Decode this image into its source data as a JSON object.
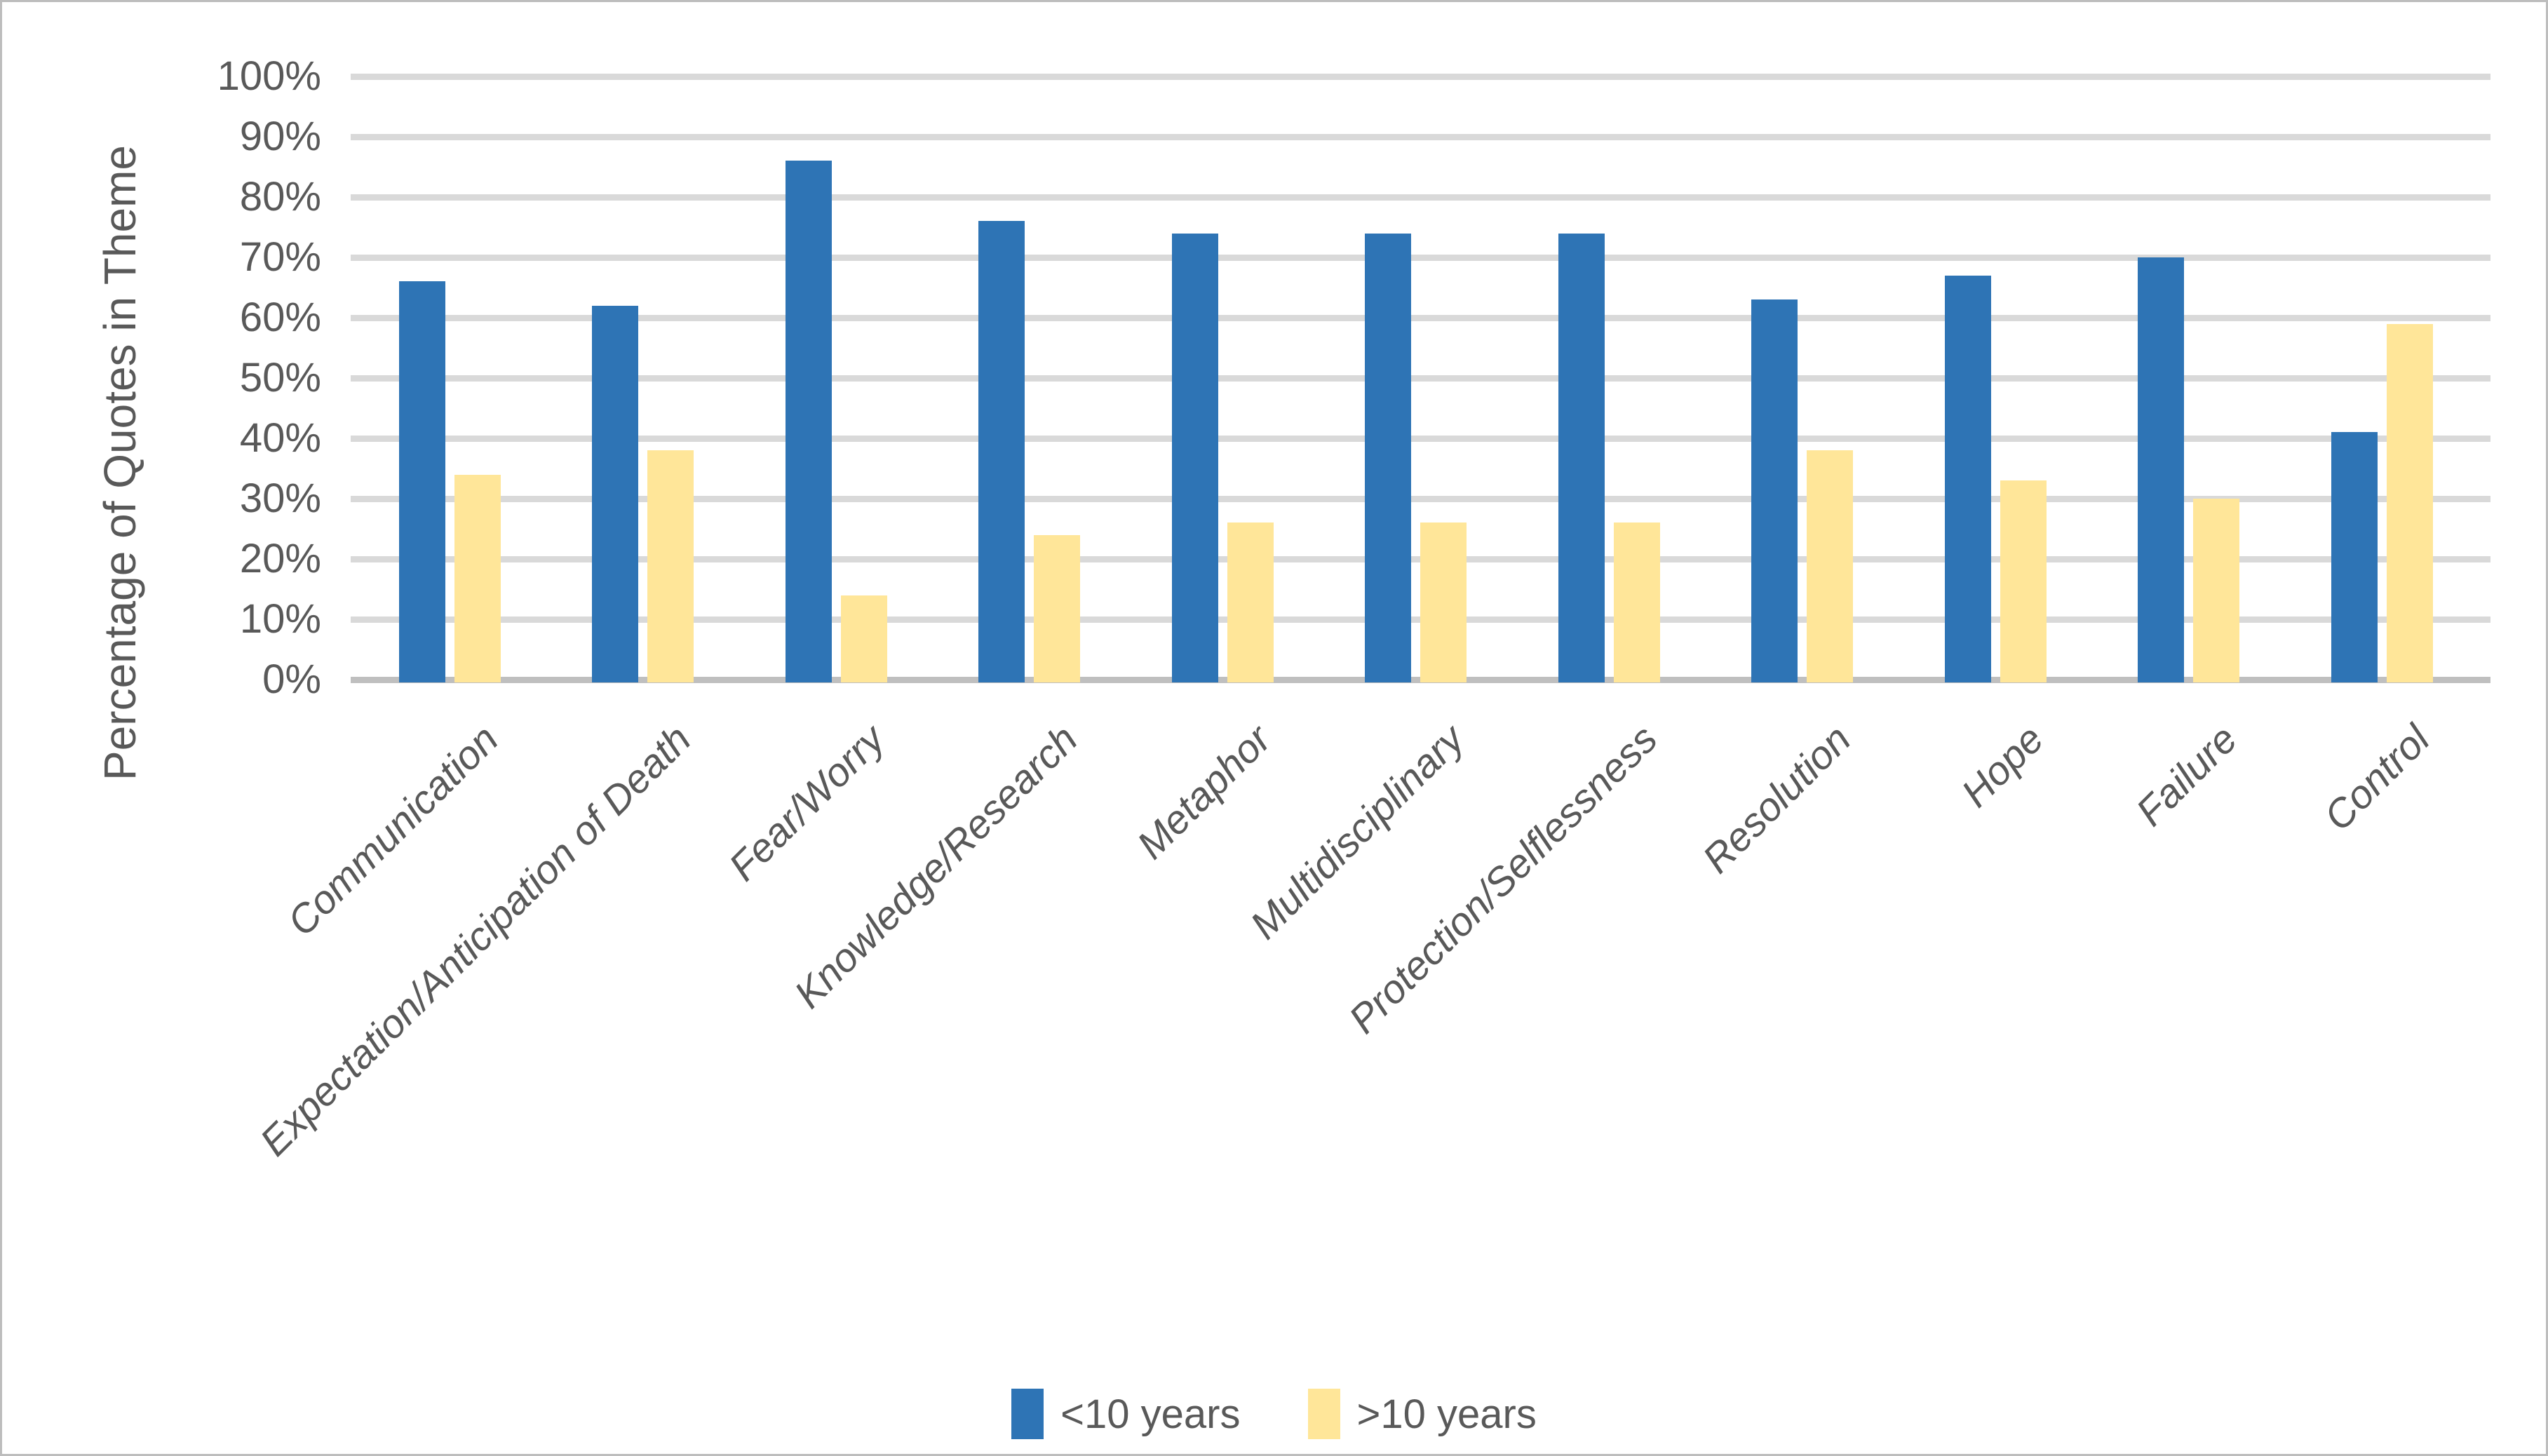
{
  "chart_data": {
    "type": "bar",
    "title": "",
    "xlabel": "",
    "ylabel": "Percentage of Quotes in Theme",
    "ylim": [
      0,
      100
    ],
    "y_tick_step": 10,
    "y_ticks": [
      "0%",
      "10%",
      "20%",
      "30%",
      "40%",
      "50%",
      "60%",
      "70%",
      "80%",
      "90%",
      "100%"
    ],
    "grid": true,
    "legend_position": "bottom-center",
    "categories": [
      "Communication",
      "Expectation/Anticipation of Death",
      "Fear/Worry",
      "Knowledge/Research",
      "Metaphor",
      "Multidisciplinary",
      "Protection/Selflessness",
      "Resolution",
      "Hope",
      "Failure",
      "Control"
    ],
    "series": [
      {
        "name": "<10 years",
        "color": "#2E74B5",
        "values": [
          66,
          62,
          86,
          76,
          74,
          74,
          74,
          63,
          67,
          70,
          41
        ]
      },
      {
        "name": ">10 years",
        "color": "#FFE699",
        "values": [
          34,
          38,
          14,
          24,
          26,
          26,
          26,
          38,
          33,
          30,
          59
        ]
      }
    ]
  },
  "colors": {
    "background": "#FFFFFF",
    "gridline": "#D9D9D9",
    "axis_line": "#BFBFBF",
    "text": "#595959",
    "frame_border": "#BDBDBD"
  }
}
